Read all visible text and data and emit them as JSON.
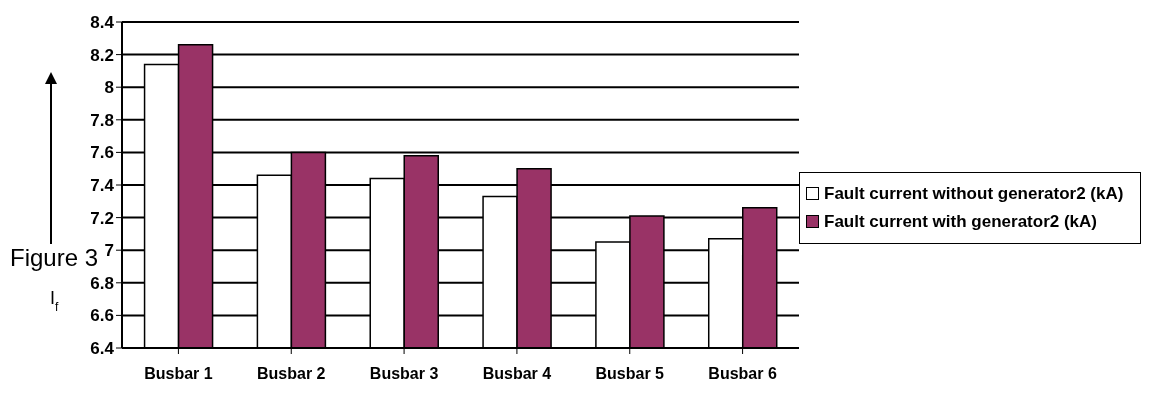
{
  "chart_data": {
    "type": "bar",
    "ylabel": "I$_{f}$",
    "annotations": [
      "Figure 3"
    ],
    "categories": [
      "Busbar 1",
      "Busbar 2",
      "Busbar 3",
      "Busbar 4",
      "Busbar 5",
      "Busbar 6"
    ],
    "series": [
      {
        "name": "Fault current without generator2 (kA)",
        "color": "#ffffff",
        "values": [
          8.14,
          7.46,
          7.44,
          7.33,
          7.05,
          7.07
        ]
      },
      {
        "name": "Fault current with generator2 (kA)",
        "color": "#993366",
        "values": [
          8.26,
          7.6,
          7.58,
          7.5,
          7.21,
          7.26
        ]
      }
    ],
    "ylim": [
      6.4,
      8.4
    ],
    "yticks": [
      6.4,
      6.6,
      6.8,
      7,
      7.2,
      7.4,
      7.6,
      7.8,
      8,
      8.2,
      8.4
    ],
    "grid": "y",
    "legend": "right"
  }
}
